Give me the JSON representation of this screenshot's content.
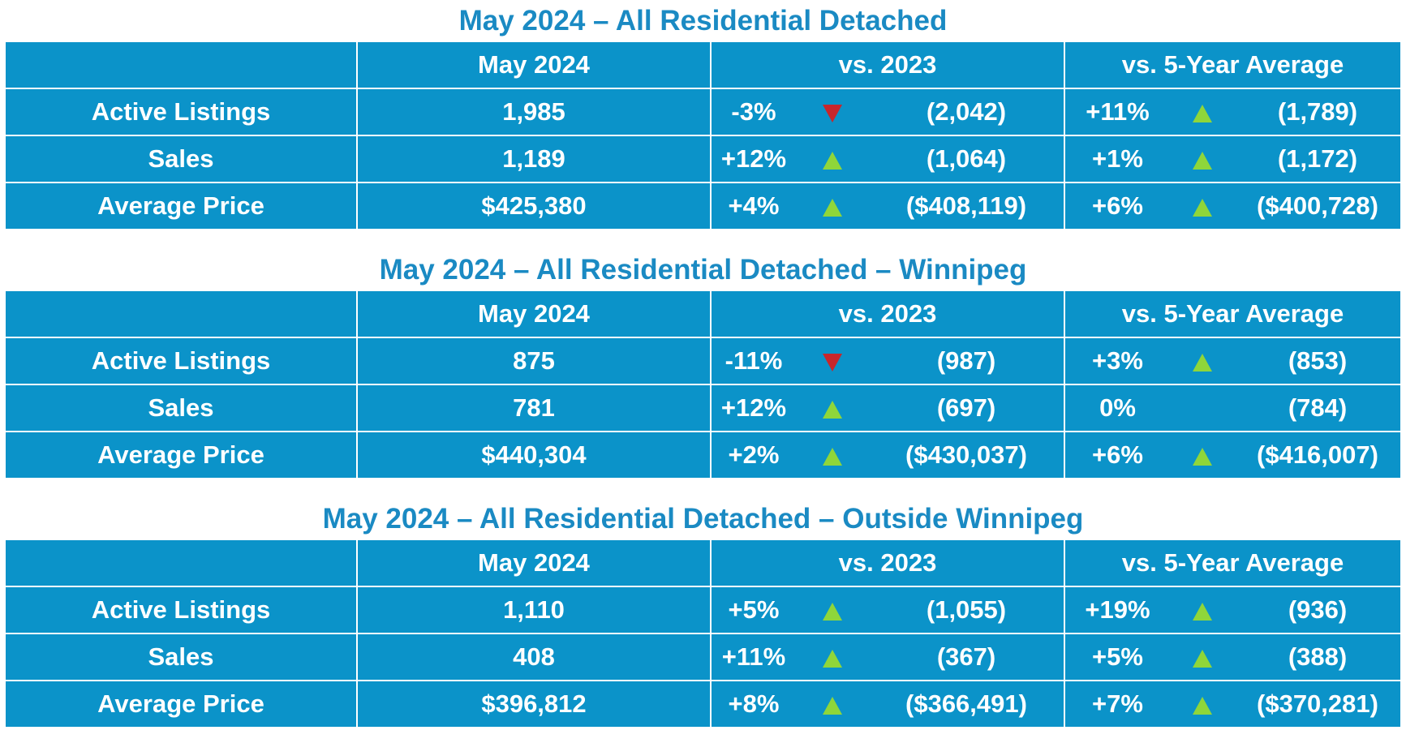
{
  "colors": {
    "title": "#1a8ac3",
    "table_bg": "#0b93c9",
    "up": "#8fd63a",
    "down": "#c8262b"
  },
  "sections": [
    {
      "title": "May 2024 – All Residential Detached",
      "headers": [
        "",
        "May 2024",
        "vs. 2023",
        "vs. 5-Year Average"
      ],
      "rows": [
        {
          "label": "Active Listings",
          "value": "1,985",
          "vs2023": {
            "pct": "-3%",
            "arrow": "down",
            "prev": "(2,042)"
          },
          "vs5yr": {
            "pct": "+11%",
            "arrow": "up",
            "prev": "(1,789)"
          }
        },
        {
          "label": "Sales",
          "value": "1,189",
          "vs2023": {
            "pct": "+12%",
            "arrow": "up",
            "prev": "(1,064)"
          },
          "vs5yr": {
            "pct": "+1%",
            "arrow": "up",
            "prev": "(1,172)"
          }
        },
        {
          "label": "Average Price",
          "value": "$425,380",
          "vs2023": {
            "pct": "+4%",
            "arrow": "up",
            "prev": "($408,119)"
          },
          "vs5yr": {
            "pct": "+6%",
            "arrow": "up",
            "prev": "($400,728)"
          }
        }
      ]
    },
    {
      "title": "May 2024 – All Residential Detached – Winnipeg",
      "headers": [
        "",
        "May 2024",
        "vs. 2023",
        "vs. 5-Year Average"
      ],
      "rows": [
        {
          "label": "Active Listings",
          "value": "875",
          "vs2023": {
            "pct": "-11%",
            "arrow": "down",
            "prev": "(987)"
          },
          "vs5yr": {
            "pct": "+3%",
            "arrow": "up",
            "prev": "(853)"
          }
        },
        {
          "label": "Sales",
          "value": "781",
          "vs2023": {
            "pct": "+12%",
            "arrow": "up",
            "prev": "(697)"
          },
          "vs5yr": {
            "pct": "0%",
            "arrow": "none",
            "prev": "(784)"
          }
        },
        {
          "label": "Average Price",
          "value": "$440,304",
          "vs2023": {
            "pct": "+2%",
            "arrow": "up",
            "prev": "($430,037)"
          },
          "vs5yr": {
            "pct": "+6%",
            "arrow": "up",
            "prev": "($416,007)"
          }
        }
      ]
    },
    {
      "title": "May 2024 – All Residential Detached – Outside Winnipeg",
      "headers": [
        "",
        "May 2024",
        "vs. 2023",
        "vs. 5-Year Average"
      ],
      "rows": [
        {
          "label": "Active Listings",
          "value": "1,110",
          "vs2023": {
            "pct": "+5%",
            "arrow": "up",
            "prev": "(1,055)"
          },
          "vs5yr": {
            "pct": "+19%",
            "arrow": "up",
            "prev": "(936)"
          }
        },
        {
          "label": "Sales",
          "value": "408",
          "vs2023": {
            "pct": "+11%",
            "arrow": "up",
            "prev": "(367)"
          },
          "vs5yr": {
            "pct": "+5%",
            "arrow": "up",
            "prev": "(388)"
          }
        },
        {
          "label": "Average Price",
          "value": "$396,812",
          "vs2023": {
            "pct": "+8%",
            "arrow": "up",
            "prev": "($366,491)"
          },
          "vs5yr": {
            "pct": "+7%",
            "arrow": "up",
            "prev": "($370,281)"
          }
        }
      ]
    }
  ]
}
